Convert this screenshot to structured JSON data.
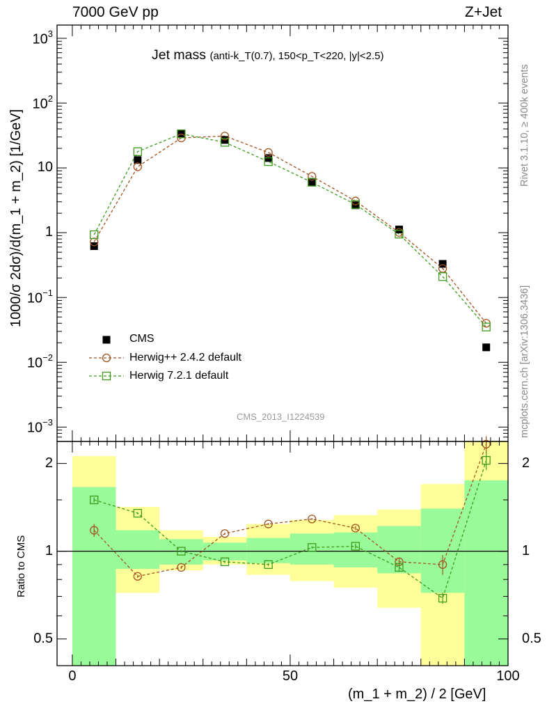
{
  "header": {
    "left": "7000 GeV pp",
    "right": "Z+Jet"
  },
  "side_labels": {
    "rivet": "Rivet 3.1.10, ≥ 400k events",
    "mcplots": "mcplots.cern.ch [arXiv:1306.3436]"
  },
  "title": {
    "main": "Jet mass",
    "sub": "(anti-k_T(0.7), 150<p_T<220, |y|<2.5)"
  },
  "analysis_tag": "CMS_2013_I1224539",
  "axes": {
    "ylabel_main": "1000/σ 2dσ)/d(m_1 + m_2) [1/GeV]",
    "ylabel_ratio": "Ratio to CMS",
    "xlabel": "(m_1 + m_2) / 2 [GeV]"
  },
  "legend": [
    {
      "label": "CMS",
      "marker": "filled-square",
      "color": "#000000"
    },
    {
      "label": "Herwig++ 2.4.2 default",
      "marker": "open-circle",
      "color": "#a0521d"
    },
    {
      "label": "Herwig 7.2.1 default",
      "marker": "open-square",
      "color": "#3c9a1c"
    }
  ],
  "colors": {
    "band_outer": "#ffff9a",
    "band_inner": "#98fa98",
    "herwigpp": "#a0521d",
    "herwig7": "#3c9a1c",
    "data": "#000000"
  },
  "chart_data": [
    {
      "type": "scatter",
      "panel": "main",
      "yscale": "log",
      "xlim": [
        -3.5,
        100
      ],
      "ylim": [
        0.0006,
        1600
      ],
      "xticks": [
        0,
        50,
        100
      ],
      "yticks": [
        {
          "value": 0.001,
          "base": "10",
          "exp": "−3"
        },
        {
          "value": 0.01,
          "base": "10",
          "exp": "−2"
        },
        {
          "value": 0.1,
          "base": "10",
          "exp": "−1"
        },
        {
          "value": 1,
          "base": "1",
          "exp": ""
        },
        {
          "value": 10,
          "base": "10",
          "exp": ""
        },
        {
          "value": 100,
          "base": "10",
          "exp": "2"
        },
        {
          "value": 1000,
          "base": "10",
          "exp": "3"
        }
      ],
      "x": [
        5,
        15,
        25,
        35,
        45,
        55,
        65,
        75,
        85,
        95
      ],
      "series": [
        {
          "name": "CMS",
          "values": [
            0.62,
            13.2,
            34.0,
            27.0,
            14.2,
            6.1,
            2.65,
            1.12,
            0.33,
            0.017
          ]
        },
        {
          "name": "Herwig++ 2.4.2 default",
          "values": [
            0.72,
            10.4,
            29.0,
            31.0,
            17.3,
            7.4,
            3.08,
            1.01,
            0.28,
            0.04
          ]
        },
        {
          "name": "Herwig 7.2.1 default",
          "values": [
            0.93,
            17.8,
            33.5,
            24.8,
            12.5,
            6.0,
            2.72,
            0.95,
            0.21,
            0.035
          ]
        }
      ]
    },
    {
      "type": "line",
      "panel": "ratio",
      "yscale": "log",
      "xlim": [
        -3.5,
        100
      ],
      "ylim": [
        0.405,
        2.38
      ],
      "yticks": [
        0.5,
        1,
        2
      ],
      "xticks": [
        0,
        50,
        100
      ],
      "bins": [
        [
          0,
          10
        ],
        [
          10,
          20
        ],
        [
          20,
          30
        ],
        [
          30,
          40
        ],
        [
          40,
          50
        ],
        [
          50,
          60
        ],
        [
          60,
          70
        ],
        [
          70,
          80
        ],
        [
          80,
          90
        ],
        [
          90,
          100
        ]
      ],
      "band_outer": [
        [
          0.36,
          2.12
        ],
        [
          0.72,
          1.42
        ],
        [
          0.86,
          1.18
        ],
        [
          0.9,
          1.12
        ],
        [
          0.83,
          1.24
        ],
        [
          0.79,
          1.28
        ],
        [
          0.75,
          1.33
        ],
        [
          0.64,
          1.39
        ],
        [
          0.4,
          1.7
        ],
        [
          0.4,
          2.4
        ]
      ],
      "band_inner": [
        [
          0.38,
          1.66
        ],
        [
          0.87,
          1.18
        ],
        [
          0.9,
          1.1
        ],
        [
          0.93,
          1.07
        ],
        [
          0.91,
          1.11
        ],
        [
          0.9,
          1.15
        ],
        [
          0.88,
          1.16
        ],
        [
          0.84,
          1.22
        ],
        [
          0.72,
          1.4
        ],
        [
          0.4,
          1.75
        ]
      ],
      "x": [
        5,
        15,
        25,
        35,
        45,
        55,
        65,
        75,
        85,
        95
      ],
      "series": [
        {
          "name": "Herwig++ 2.4.2 default",
          "values": [
            1.18,
            0.82,
            0.88,
            1.15,
            1.24,
            1.29,
            1.2,
            0.92,
            0.9,
            2.33
          ],
          "err": [
            0.06,
            0.01,
            0.01,
            0.01,
            0.01,
            0.01,
            0.02,
            0.03,
            0.07,
            0.15
          ]
        },
        {
          "name": "Herwig 7.2.1 default",
          "values": [
            1.5,
            1.35,
            1.0,
            0.92,
            0.9,
            1.03,
            1.04,
            0.88,
            0.69,
            2.05
          ],
          "err": [
            0.03,
            0.01,
            0.01,
            0.01,
            0.01,
            0.01,
            0.02,
            0.03,
            0.03,
            0.15
          ]
        }
      ]
    }
  ]
}
